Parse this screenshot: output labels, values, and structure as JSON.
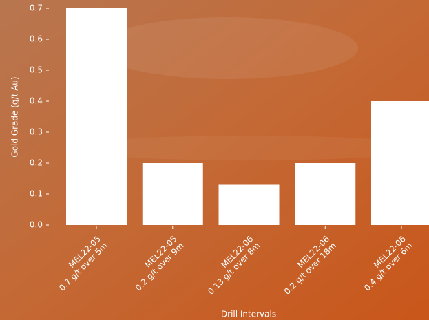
{
  "chart_data": {
    "type": "bar",
    "categories": [
      "MEL22-05\n0.7 g/t over 5m",
      "MEL22-05\n0.2 g/t over 9m",
      "MEL22-06\n0.13 g/t over 8m",
      "MEL22-06\n0.2 g/t over 18m",
      "MEL22-06\n0.4 g/t over 6m"
    ],
    "values": [
      0.7,
      0.2,
      0.13,
      0.2,
      0.4
    ],
    "color": "#ffffff",
    "x_label": "Drill Intervals",
    "y_label": "Gold Grade (g/t Au)",
    "ylim": [
      0,
      0.7
    ],
    "yticks": [
      {
        "value": 0,
        "label": "0.0"
      },
      0.1,
      0.2,
      0.3,
      0.4,
      0.5,
      0.6,
      0.7
    ]
  }
}
